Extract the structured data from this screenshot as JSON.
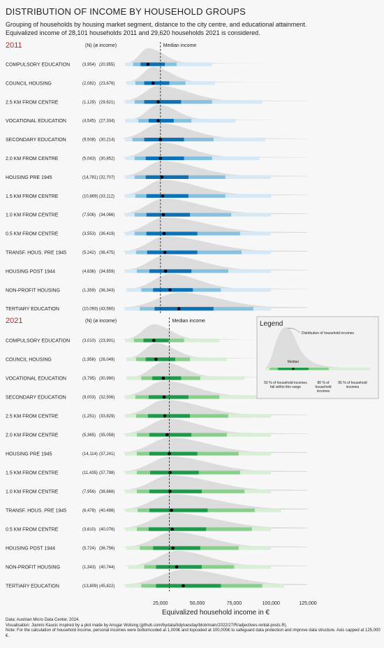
{
  "title": "DISTRIBUTION OF INCOME BY HOUSEHOLD GROUPS",
  "subtitle_line1": "Grouping of households by housing market segment, distance to the city centre, and educational attainment.",
  "subtitle_line2": "Equivalized income of 28,101 households 2011 and 29,620 households 2021 is considered.",
  "colors": {
    "blue_dark": "#0d72b5",
    "blue_mid": "#86c2e0",
    "blue_light": "#d5e8f6",
    "green_dark": "#1c9a4a",
    "green_mid": "#89cf8c",
    "green_light": "#d8efd6",
    "density": "#dcdcdc",
    "red_year": "#d7191c",
    "median_line": "#333333"
  },
  "chart_data": [
    {
      "type": "interval-density",
      "panel_label": "2011",
      "column_header": "(N) (ø income)",
      "median_line_label": "Median income",
      "median_line_value": 25000,
      "xlim": [
        0,
        125000
      ],
      "rows": [
        {
          "label": "COMPULSORY EDUCATION",
          "n": "(3,954)",
          "avg": "(20,955)",
          "median": 16500,
          "i50": [
            11500,
            28000
          ],
          "i80": [
            6500,
            36000
          ],
          "i95": [
            1000,
            60000
          ]
        },
        {
          "label": "COUNCIL HOUSING",
          "n": "(2,082)",
          "avg": "(23,676)",
          "median": 20000,
          "i50": [
            14000,
            31000
          ],
          "i80": [
            8000,
            42000
          ],
          "i95": [
            2000,
            62000
          ]
        },
        {
          "label": "2.5 KM FROM CENTRE",
          "n": "(1,129)",
          "avg": "(29,621)",
          "median": 23500,
          "i50": [
            14000,
            39000
          ],
          "i80": [
            7500,
            60000
          ],
          "i95": [
            1000,
            94000
          ]
        },
        {
          "label": "VOCATIONAL EDUCATION",
          "n": "(4,545)",
          "avg": "(27,334)",
          "median": 23500,
          "i50": [
            17000,
            34000
          ],
          "i80": [
            10000,
            46000
          ],
          "i95": [
            1000,
            76000
          ]
        },
        {
          "label": "SECONDARY EDUCATION",
          "n": "(9,508)",
          "avg": "(30,214)",
          "median": 25000,
          "i50": [
            14000,
            41000
          ],
          "i80": [
            6000,
            61000
          ],
          "i95": [
            1000,
            96000
          ]
        },
        {
          "label": "2.0 KM FROM CENTRE",
          "n": "(5,043)",
          "avg": "(30,852)",
          "median": 25000,
          "i50": [
            15000,
            41000
          ],
          "i80": [
            7500,
            60000
          ],
          "i95": [
            1000,
            92000
          ]
        },
        {
          "label": "HOUSING PRE 1945",
          "n": "(14,781)",
          "avg": "(32,707)",
          "median": 26000,
          "i50": [
            15000,
            44000
          ],
          "i80": [
            7500,
            69000
          ],
          "i95": [
            1000,
            100000
          ]
        },
        {
          "label": "1.5 KM FROM CENTRE",
          "n": "(10,869)",
          "avg": "(33,112)",
          "median": 26500,
          "i50": [
            15500,
            44000
          ],
          "i80": [
            8000,
            69000
          ],
          "i95": [
            1000,
            100000
          ]
        },
        {
          "label": "1.0 KM FROM CENTRE",
          "n": "(7,506)",
          "avg": "(34,066)",
          "median": 27000,
          "i50": [
            15500,
            45000
          ],
          "i80": [
            7500,
            73000
          ],
          "i95": [
            1000,
            100000
          ]
        },
        {
          "label": "0.5 KM FROM CENTRE",
          "n": "(3,553)",
          "avg": "(36,419)",
          "median": 27500,
          "i50": [
            15500,
            50000
          ],
          "i80": [
            7500,
            79000
          ],
          "i95": [
            1000,
            100000
          ]
        },
        {
          "label": "TRANSF. HOUS. PRE 1945",
          "n": "(5,242)",
          "avg": "(36,475)",
          "median": 28000,
          "i50": [
            16000,
            50000
          ],
          "i80": [
            8500,
            80000
          ],
          "i95": [
            1000,
            100000
          ]
        },
        {
          "label": "HOUSING POST 1944",
          "n": "(4,636)",
          "avg": "(34,659)",
          "median": 28500,
          "i50": [
            17500,
            46000
          ],
          "i80": [
            9000,
            71000
          ],
          "i95": [
            1000,
            100000
          ]
        },
        {
          "label": "NON-PROFIT HOUSING",
          "n": "(1,359)",
          "avg": "(36,343)",
          "median": 31500,
          "i50": [
            20000,
            47000
          ],
          "i80": [
            12000,
            66000
          ],
          "i95": [
            2000,
            100000
          ]
        },
        {
          "label": "TERTIARY EDUCATION",
          "n": "(10,093)",
          "avg": "(43,560)",
          "median": 37500,
          "i50": [
            21000,
            61000
          ],
          "i80": [
            11000,
            88000
          ],
          "i95": [
            1000,
            100000
          ]
        }
      ]
    },
    {
      "type": "interval-density",
      "panel_label": "2021",
      "column_header": "(N) (ø income)",
      "median_line_label": "Median income",
      "median_line_value": 31000,
      "xlim": [
        0,
        125000
      ],
      "xlabel": "Equivalized household income in €",
      "x_ticks": [
        "25,000",
        "50,000",
        "75,000",
        "100,000",
        "125,000"
      ],
      "x_tick_values": [
        25000,
        50000,
        75000,
        100000,
        125000
      ],
      "rows": [
        {
          "label": "COMPULSORY EDUCATION",
          "n": "(3,010)",
          "avg": "(23,901)",
          "median": 20500,
          "i50": [
            13500,
            30500
          ],
          "i80": [
            7000,
            41000
          ],
          "i95": [
            1000,
            65000
          ]
        },
        {
          "label": "COUNCIL HOUSING",
          "n": "(1,958)",
          "avg": "(26,049)",
          "median": 22000,
          "i50": [
            15000,
            35000
          ],
          "i80": [
            8500,
            45000
          ],
          "i95": [
            2000,
            70000
          ]
        },
        {
          "label": "VOCATIONAL EDUCATION",
          "n": "(3,795)",
          "avg": "(30,990)",
          "median": 27000,
          "i50": [
            19500,
            39000
          ],
          "i80": [
            12000,
            52000
          ],
          "i95": [
            2000,
            82000
          ]
        },
        {
          "label": "SECONDARY EDUCATION",
          "n": "(9,003)",
          "avg": "(32,506)",
          "median": 27500,
          "i50": [
            17000,
            44000
          ],
          "i80": [
            8000,
            65000
          ],
          "i95": [
            1000,
            100000
          ]
        },
        {
          "label": "2.5 KM FROM CENTRE",
          "n": "(1,251)",
          "avg": "(33,829)",
          "median": 28000,
          "i50": [
            16500,
            45000
          ],
          "i80": [
            8500,
            71000
          ],
          "i95": [
            1000,
            100000
          ]
        },
        {
          "label": "2.0 KM FROM CENTRE",
          "n": "(5,365)",
          "avg": "(35,058)",
          "median": 29500,
          "i50": [
            17500,
            46000
          ],
          "i80": [
            9000,
            70000
          ],
          "i95": [
            1000,
            100000
          ]
        },
        {
          "label": "HOUSING PRE 1945",
          "n": "(14,114)",
          "avg": "(37,241)",
          "median": 31000,
          "i50": [
            17500,
            50000
          ],
          "i80": [
            9000,
            78000
          ],
          "i95": [
            1000,
            100000
          ]
        },
        {
          "label": "1.5 KM FROM CENTRE",
          "n": "(11,435)",
          "avg": "(37,798)",
          "median": 31500,
          "i50": [
            18000,
            51000
          ],
          "i80": [
            9000,
            79000
          ],
          "i95": [
            1000,
            100000
          ]
        },
        {
          "label": "1.0 KM FROM CENTRE",
          "n": "(7,956)",
          "avg": "(38,668)",
          "median": 31500,
          "i50": [
            17500,
            53000
          ],
          "i80": [
            9000,
            82000
          ],
          "i95": [
            1000,
            100000
          ]
        },
        {
          "label": "TRANSF. HOUS. PRE 1945",
          "n": "(6,478)",
          "avg": "(40,498)",
          "median": 32500,
          "i50": [
            17500,
            57000
          ],
          "i80": [
            9500,
            89000
          ],
          "i95": [
            1000,
            107000
          ]
        },
        {
          "label": "0.5 KM FROM CENTRE",
          "n": "(3,610)",
          "avg": "(40,076)",
          "median": 33000,
          "i50": [
            17000,
            56000
          ],
          "i80": [
            9000,
            87000
          ],
          "i95": [
            1000,
            100000
          ]
        },
        {
          "label": "HOUSING POST 1944",
          "n": "(5,724)",
          "avg": "(36,756)",
          "median": 33500,
          "i50": [
            20000,
            52000
          ],
          "i80": [
            11000,
            78000
          ],
          "i95": [
            2000,
            100000
          ]
        },
        {
          "label": "NON-PROFIT HOUSING",
          "n": "(1,343)",
          "avg": "(40,744)",
          "median": 36000,
          "i50": [
            22000,
            53000
          ],
          "i80": [
            14000,
            75000
          ],
          "i95": [
            3000,
            100000
          ]
        },
        {
          "label": "TERTIARY EDUCATION",
          "n": "(13,809)",
          "avg": "(45,822)",
          "median": 40500,
          "i50": [
            22000,
            66000
          ],
          "i80": [
            12000,
            94000
          ],
          "i95": [
            1000,
            109000
          ]
        }
      ]
    }
  ],
  "legend": {
    "title": "Legend",
    "density_label": "Distribution of household incomes",
    "median_label": "Median",
    "i50_label": "50 % of household incomes fall within this range",
    "i80_label": "80 % of household incomes",
    "i95_label": "95 % of household incomes"
  },
  "footer": {
    "line1": "Data: Austrian Micro Data Center, 2024.",
    "line2": "Visualisation: Jiannis Kaucic inspired by a plot made by Ansgar Wolsing (github.com/bydata/tidytuesday/blob/main/2022/27/R/adjectives-rental-posts.R).",
    "line3": "Note: For the calculation of household income, personal incomes were bottomcoded  at 1,000€ and topcoded at 100,000€ to safeguard data protection and improve data structure. Axis capped at 125,000 €."
  }
}
